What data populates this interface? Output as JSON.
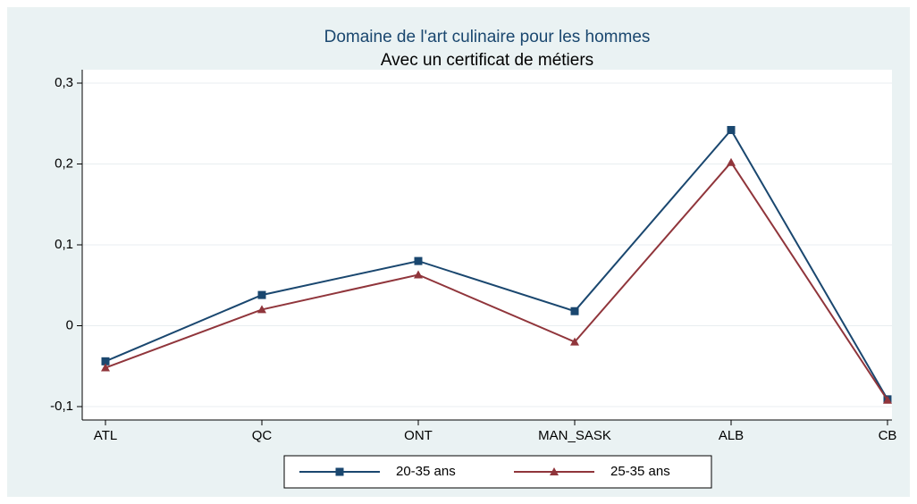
{
  "chart_data": {
    "type": "line",
    "title": "Domaine de l'art culinaire pour les hommes",
    "subtitle": "Avec un certificat de métiers",
    "categories": [
      "ATL",
      "QC",
      "ONT",
      "MAN_SASK",
      "ALB",
      "CB"
    ],
    "series": [
      {
        "name": "20-35 ans",
        "color": "#1a476f",
        "marker": "square",
        "values": [
          -0.044,
          0.038,
          0.08,
          0.018,
          0.242,
          -0.091
        ]
      },
      {
        "name": "25-35 ans",
        "color": "#90353b",
        "marker": "triangle",
        "values": [
          -0.052,
          0.02,
          0.063,
          -0.02,
          0.202,
          -0.092
        ]
      }
    ],
    "ylim": [
      -0.1,
      0.3
    ],
    "yticks": [
      {
        "value": -0.1,
        "label": "-0,1"
      },
      0,
      {
        "value": 0.1,
        "label": "0,1"
      },
      {
        "value": 0.2,
        "label": "0,2"
      },
      {
        "value": 0.3,
        "label": "0,3"
      }
    ],
    "grid": true,
    "legend": "bottom"
  }
}
